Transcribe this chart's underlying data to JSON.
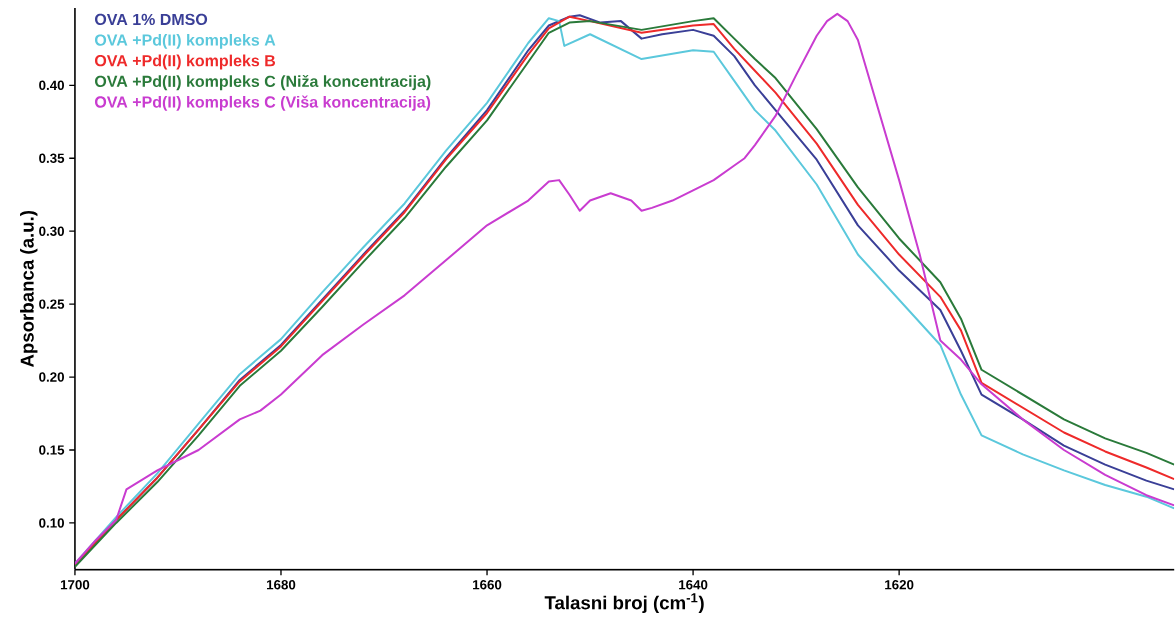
{
  "chart_data": {
    "type": "line",
    "xlabel": "Talasni broj (cm$^{-1}$)",
    "ylabel": "Apsorbanca (a.u.)",
    "xlim": [
      1700,
      1593.3
    ],
    "ylim": [
      0.068,
      0.453
    ],
    "xticks": [
      1700,
      1680,
      1660,
      1640,
      1620
    ],
    "yticks": [
      {
        "value": 0.1,
        "label": "0.10"
      },
      {
        "value": 0.15,
        "label": "0.15"
      },
      {
        "value": 0.2,
        "label": "0.20"
      },
      {
        "value": 0.25,
        "label": "0.25"
      },
      {
        "value": 0.3,
        "label": "0.30"
      },
      {
        "value": 0.35,
        "label": "0.35"
      },
      {
        "value": 0.4,
        "label": "0.40"
      }
    ],
    "grid": false,
    "legend": "top left",
    "marker": "none",
    "line_style": "solid",
    "series": [
      {
        "name": "OVA 1% DMSO",
        "color": "#3a3f97",
        "x": [
          1700,
          1696,
          1692,
          1688,
          1684,
          1680,
          1676,
          1672,
          1668,
          1664,
          1660,
          1656,
          1654,
          1652,
          1651,
          1649,
          1647,
          1645,
          1643,
          1640,
          1638,
          1636,
          1634,
          1632,
          1628,
          1624,
          1620,
          1616,
          1614,
          1612,
          1608,
          1604,
          1600,
          1596,
          1593.3
        ],
        "values": [
          0.071,
          0.102,
          0.131,
          0.164,
          0.198,
          0.222,
          0.253,
          0.284,
          0.314,
          0.35,
          0.383,
          0.424,
          0.441,
          0.447,
          0.448,
          0.443,
          0.444,
          0.432,
          0.435,
          0.438,
          0.434,
          0.42,
          0.4,
          0.383,
          0.349,
          0.304,
          0.273,
          0.246,
          0.218,
          0.188,
          0.171,
          0.153,
          0.14,
          0.129,
          0.123
        ]
      },
      {
        "name": "OVA +Pd(II) kompleks A",
        "color": "#5bc8dc",
        "x": [
          1700,
          1696,
          1692,
          1688,
          1684,
          1680,
          1676,
          1672,
          1668,
          1664,
          1660,
          1656,
          1654,
          1653,
          1652.5,
          1650,
          1645,
          1640,
          1638,
          1636,
          1634,
          1632,
          1628,
          1624,
          1620,
          1616,
          1614,
          1612,
          1608,
          1604,
          1600,
          1596,
          1593.3
        ],
        "values": [
          0.072,
          0.104,
          0.134,
          0.168,
          0.202,
          0.226,
          0.258,
          0.289,
          0.319,
          0.355,
          0.388,
          0.429,
          0.446,
          0.444,
          0.427,
          0.435,
          0.418,
          0.424,
          0.423,
          0.403,
          0.383,
          0.369,
          0.332,
          0.284,
          0.253,
          0.222,
          0.188,
          0.16,
          0.147,
          0.136,
          0.126,
          0.118,
          0.11
        ]
      },
      {
        "name": "OVA +Pd(II) kompleks B",
        "color": "#ee2a2a",
        "x": [
          1700,
          1696,
          1692,
          1688,
          1684,
          1680,
          1676,
          1672,
          1668,
          1664,
          1660,
          1656,
          1654,
          1652,
          1650,
          1645,
          1640,
          1638,
          1636,
          1634,
          1632,
          1628,
          1624,
          1620,
          1616,
          1614,
          1612,
          1608,
          1604,
          1600,
          1596,
          1593.3
        ],
        "values": [
          0.071,
          0.102,
          0.131,
          0.164,
          0.197,
          0.221,
          0.252,
          0.283,
          0.313,
          0.349,
          0.381,
          0.421,
          0.439,
          0.447,
          0.444,
          0.436,
          0.441,
          0.442,
          0.425,
          0.41,
          0.395,
          0.36,
          0.318,
          0.284,
          0.255,
          0.232,
          0.196,
          0.179,
          0.162,
          0.149,
          0.138,
          0.13
        ]
      },
      {
        "name": "OVA +Pd(II) kompleks C (Niža koncentracija)",
        "color": "#2a7a3a",
        "x": [
          1700,
          1696,
          1692,
          1688,
          1684,
          1680,
          1676,
          1672,
          1668,
          1664,
          1660,
          1656,
          1654,
          1652,
          1650,
          1645,
          1640,
          1638,
          1636,
          1634,
          1632,
          1628,
          1624,
          1620,
          1616,
          1614,
          1612,
          1608,
          1604,
          1600,
          1596,
          1593.3
        ],
        "values": [
          0.07,
          0.1,
          0.128,
          0.16,
          0.194,
          0.218,
          0.248,
          0.279,
          0.309,
          0.344,
          0.376,
          0.416,
          0.436,
          0.443,
          0.444,
          0.438,
          0.444,
          0.446,
          0.432,
          0.418,
          0.405,
          0.37,
          0.33,
          0.295,
          0.265,
          0.24,
          0.205,
          0.188,
          0.171,
          0.158,
          0.148,
          0.14
        ]
      },
      {
        "name": "OVA +Pd(II) kompleks C (Viša koncentracija)",
        "color": "#c93cd0",
        "x": [
          1700,
          1698,
          1696,
          1695,
          1692,
          1690,
          1688,
          1684,
          1682,
          1680,
          1676,
          1672,
          1668,
          1664,
          1660,
          1656,
          1654,
          1653,
          1652,
          1651,
          1650,
          1648,
          1646,
          1645,
          1644,
          1642,
          1640,
          1638,
          1636,
          1635,
          1634,
          1632,
          1630,
          1628,
          1627,
          1626,
          1625,
          1624,
          1622,
          1620,
          1618,
          1616,
          1614,
          1612,
          1608,
          1604,
          1600,
          1596,
          1593.3
        ],
        "values": [
          0.072,
          0.088,
          0.102,
          0.123,
          0.136,
          0.143,
          0.15,
          0.171,
          0.177,
          0.188,
          0.215,
          0.236,
          0.256,
          0.28,
          0.304,
          0.321,
          0.334,
          0.335,
          0.325,
          0.314,
          0.321,
          0.326,
          0.321,
          0.314,
          0.316,
          0.321,
          0.328,
          0.335,
          0.345,
          0.35,
          0.359,
          0.379,
          0.407,
          0.434,
          0.444,
          0.449,
          0.444,
          0.431,
          0.383,
          0.335,
          0.284,
          0.225,
          0.212,
          0.195,
          0.171,
          0.15,
          0.133,
          0.119,
          0.112
        ]
      }
    ]
  }
}
